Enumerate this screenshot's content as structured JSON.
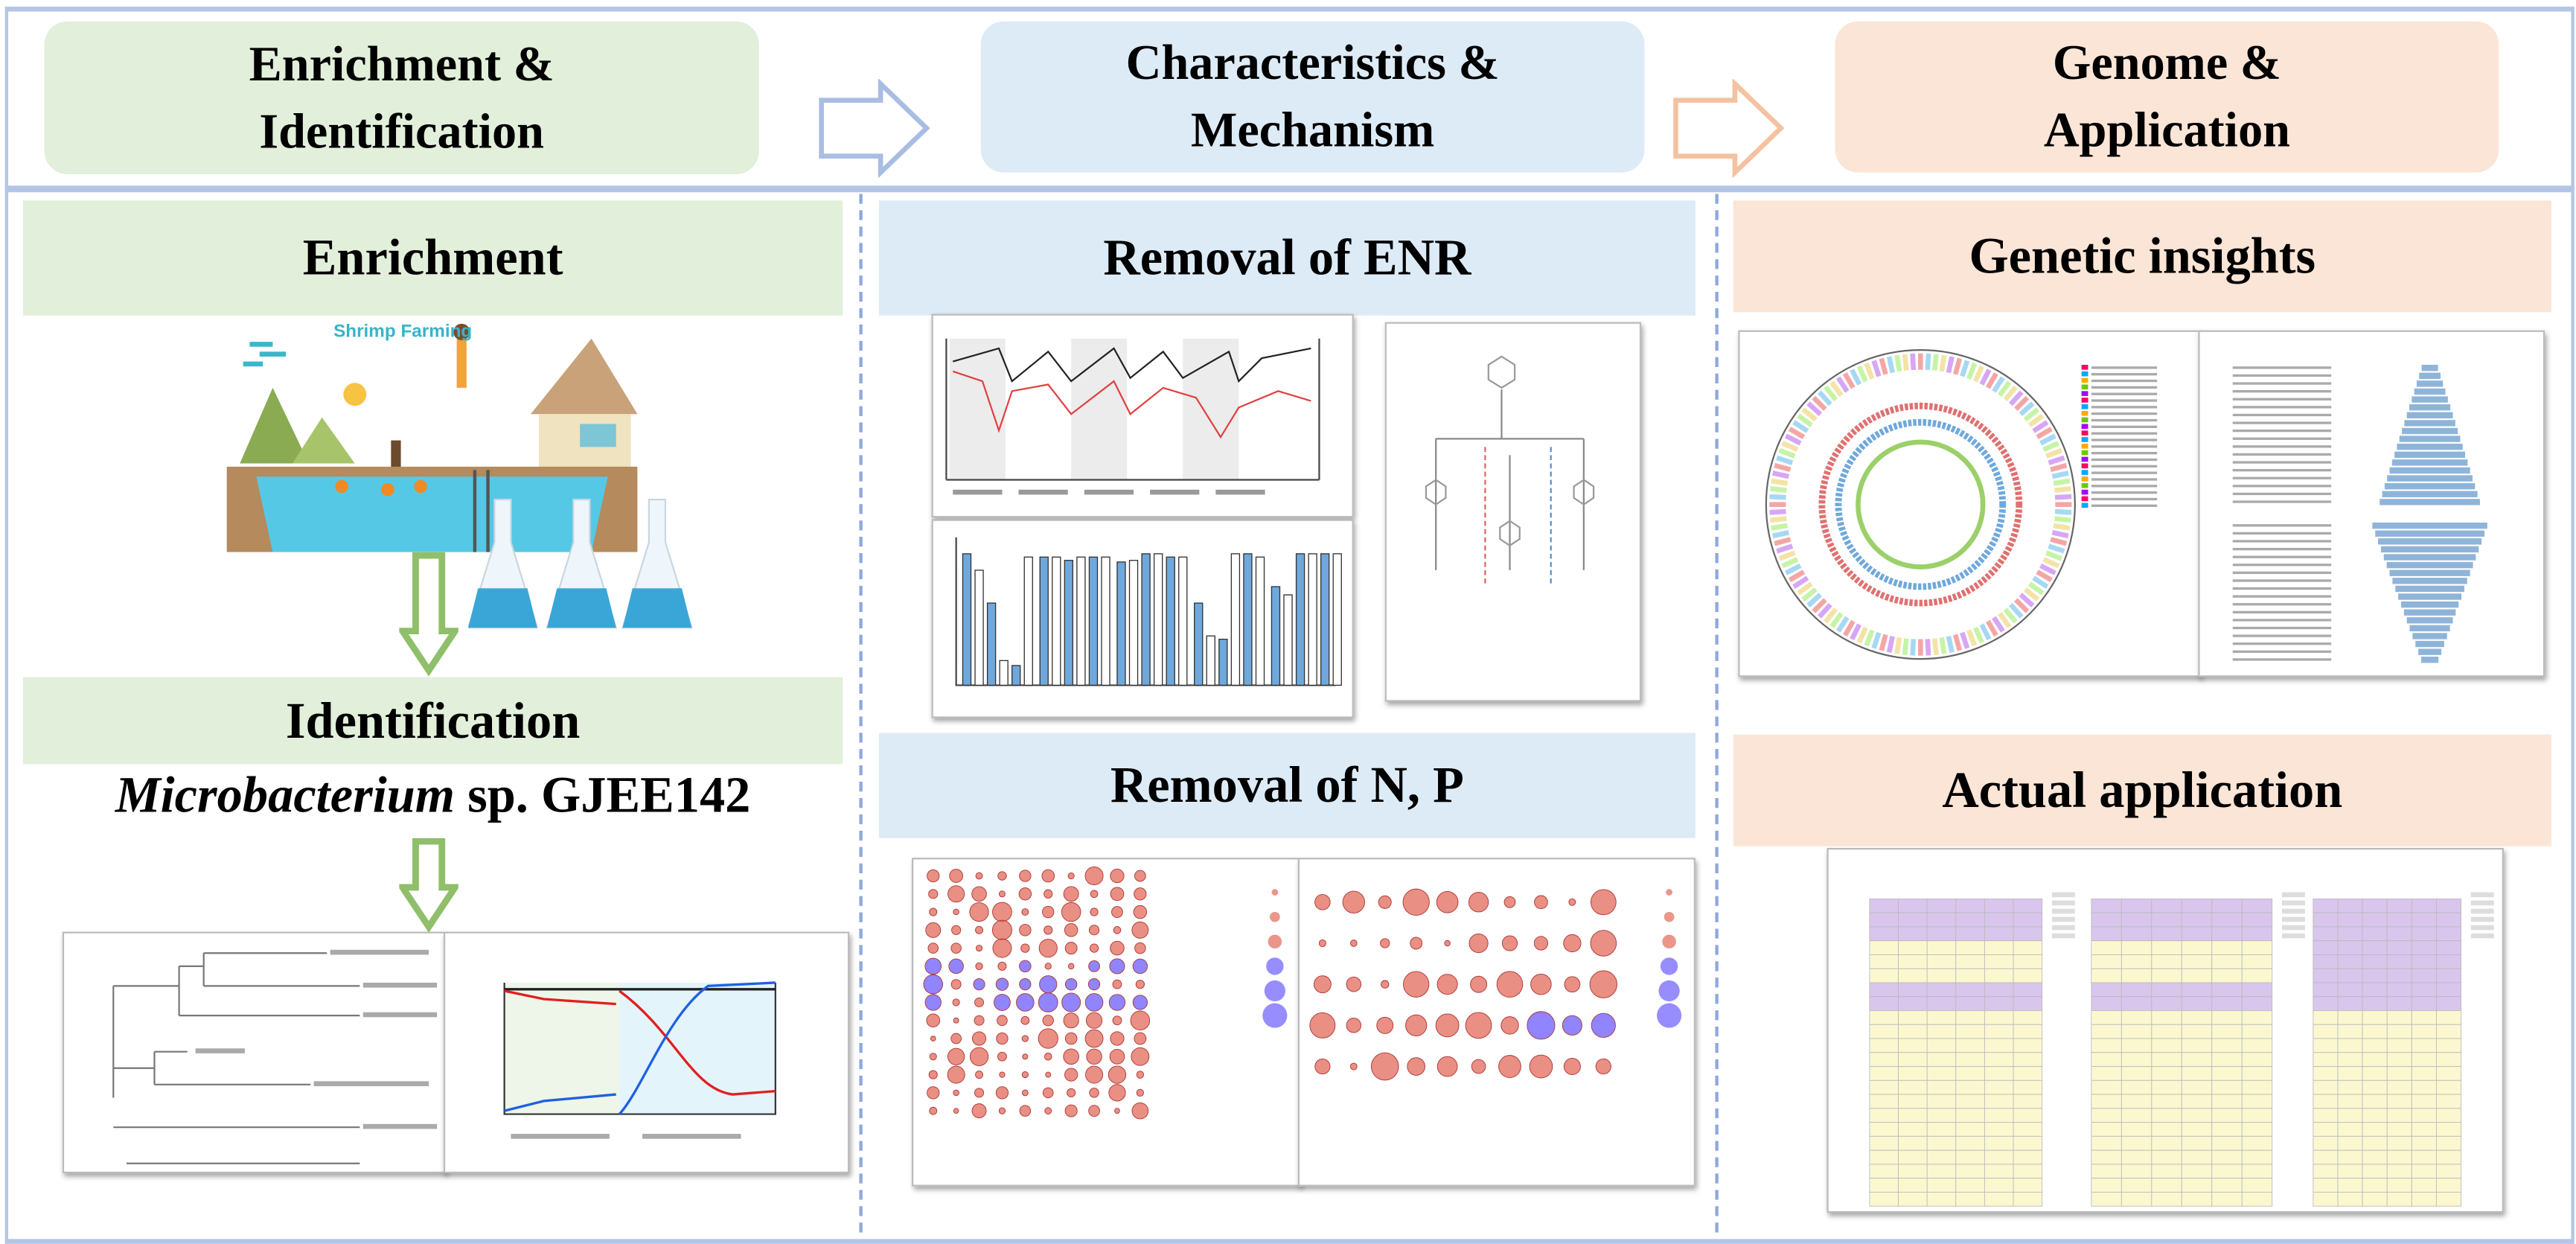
{
  "header": {
    "steps": [
      {
        "line1": "Enrichment &",
        "line2": "Identification"
      },
      {
        "line1": "Characteristics &",
        "line2": "Mechanism"
      },
      {
        "line1": "Genome &",
        "line2": "Application"
      }
    ]
  },
  "left": {
    "enrichment_title": "Enrichment",
    "shrimp_label": "Shrimp Farming",
    "identification_title": "Identification",
    "strain_genus": "Microbacterium",
    "strain_rest": " sp. GJEE142"
  },
  "middle": {
    "enr_title": "Removal of ENR",
    "np_title": "Removal of N, P"
  },
  "right": {
    "genetic_title": "Genetic insights",
    "application_title": "Actual application"
  },
  "colors": {
    "green": "#e2efda",
    "blue": "#ddebf7",
    "peach": "#fbe5d6",
    "frame": "#b4c6e7",
    "arrow_green": "#8fbf6a",
    "arrow_blue": "#a9bde3",
    "arrow_peach": "#f4c2a0"
  }
}
